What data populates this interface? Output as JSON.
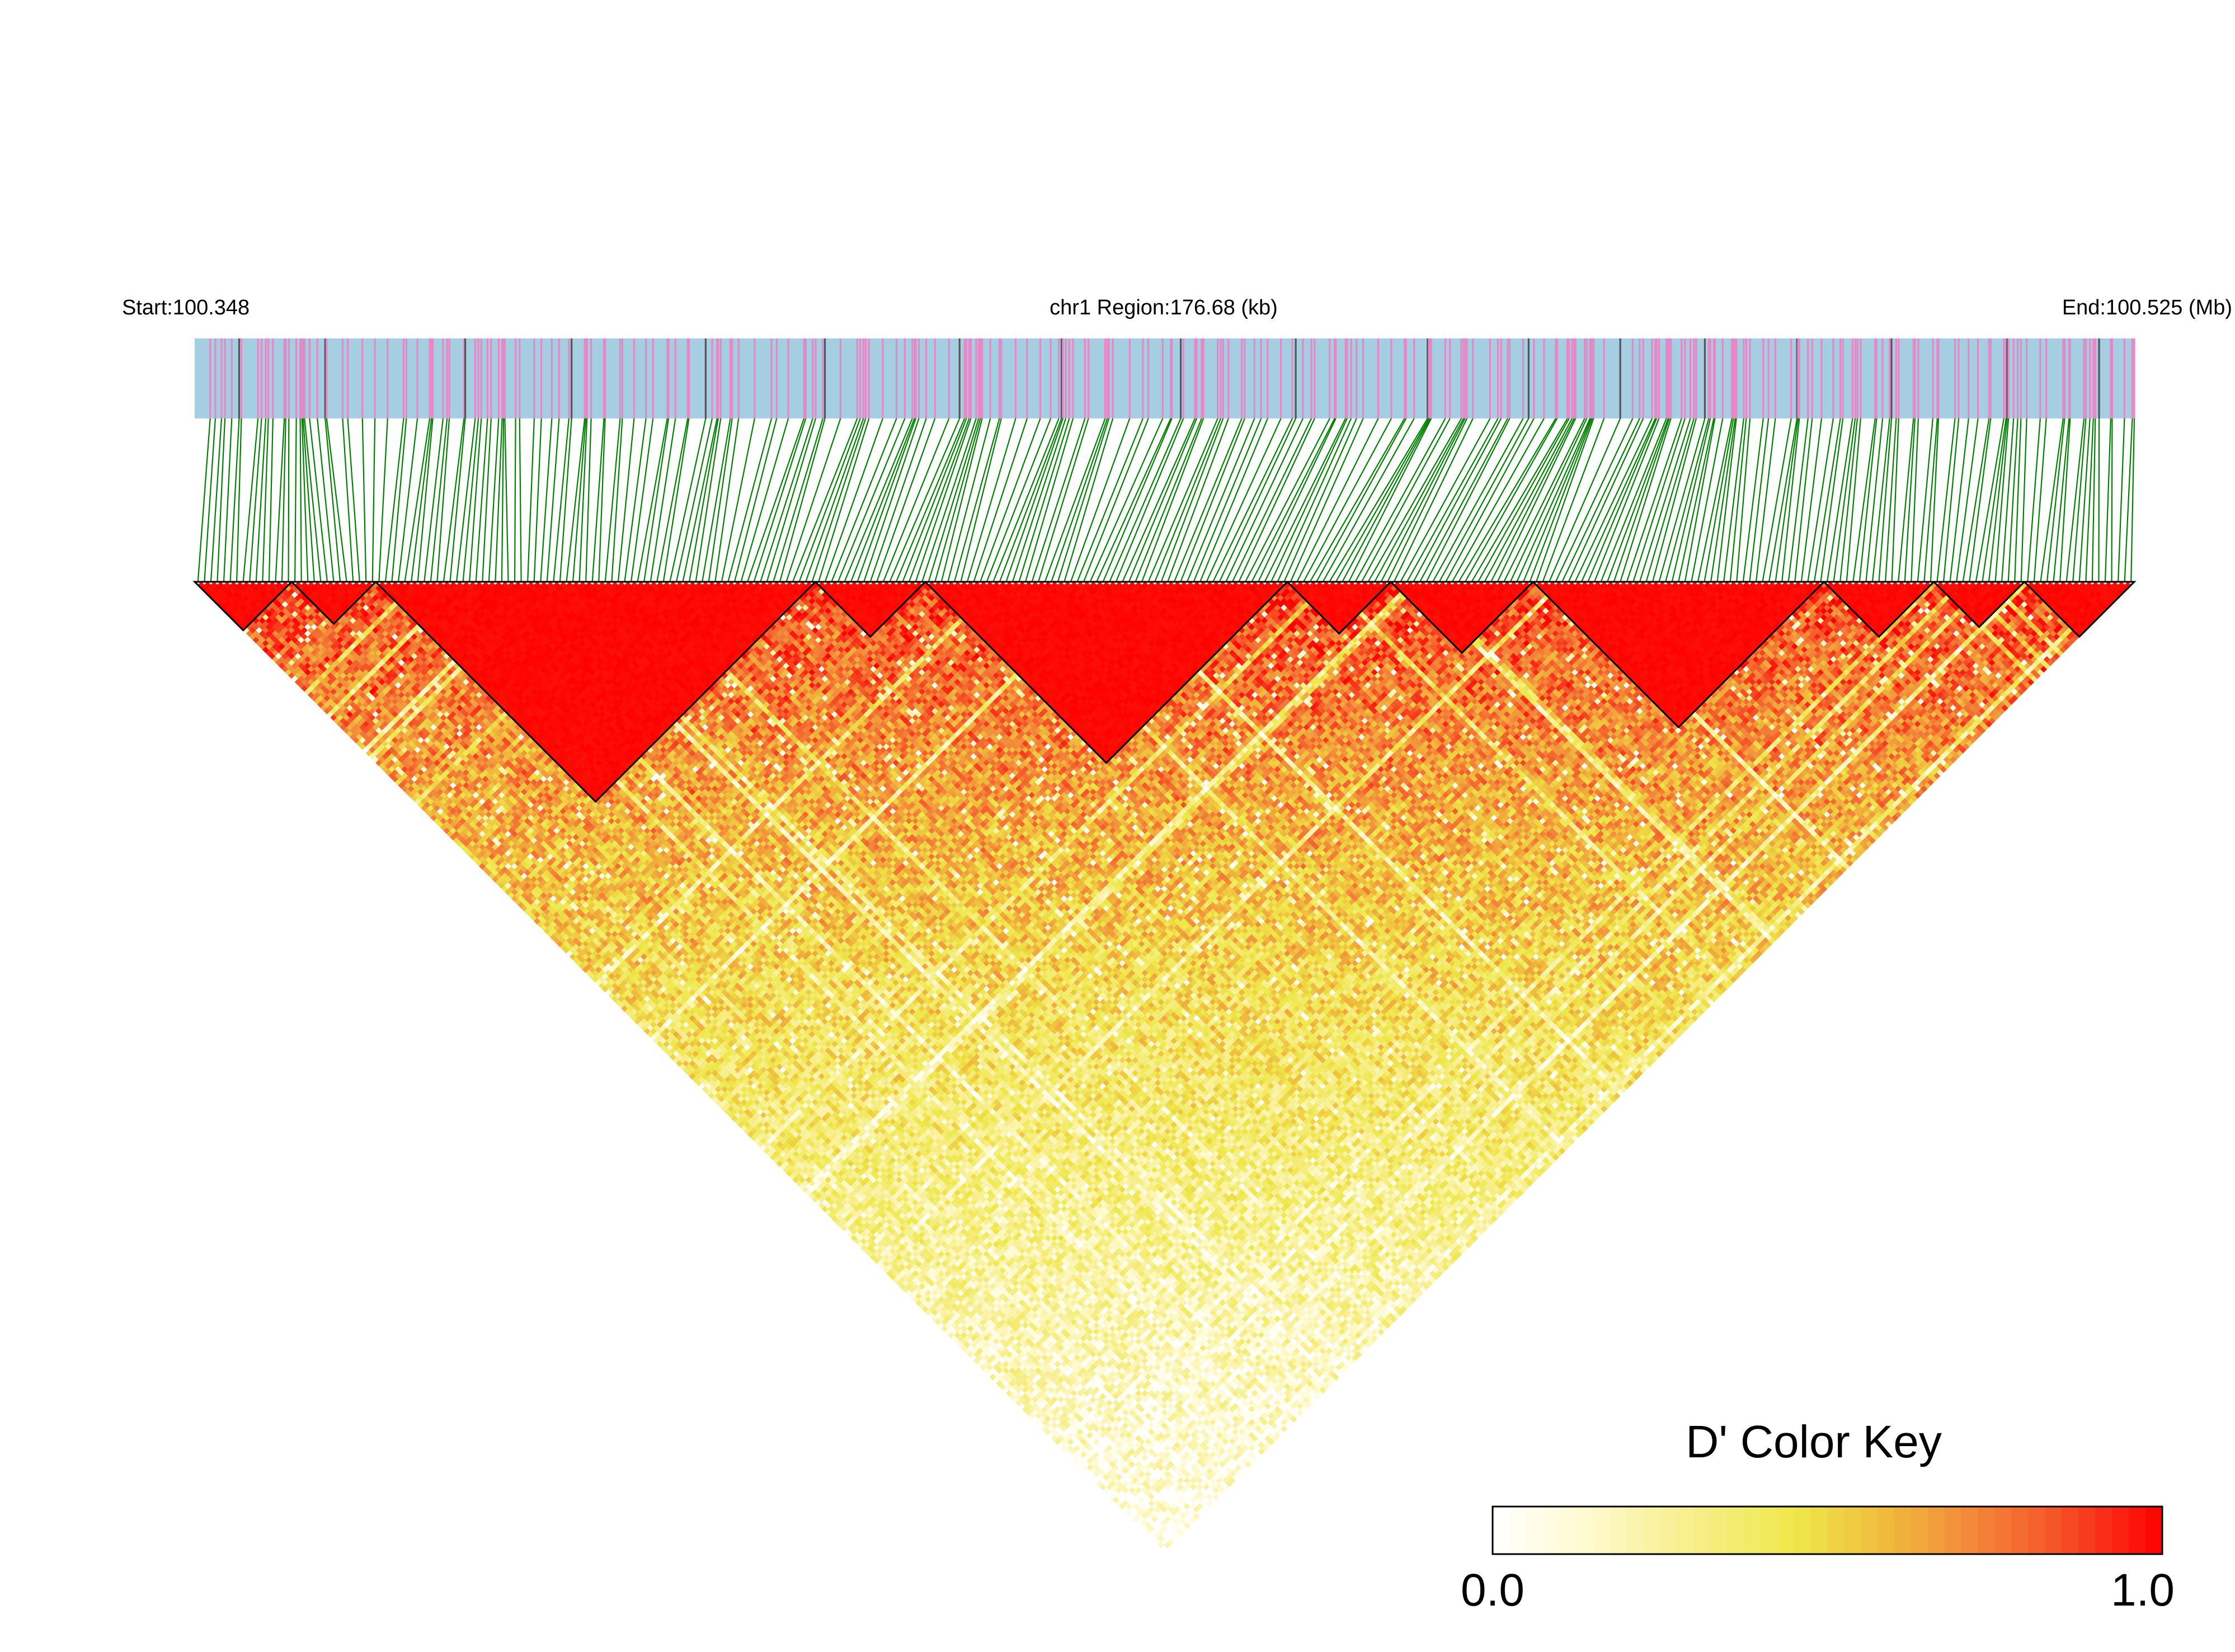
{
  "header": {
    "start_label": "Start:100.348",
    "region_label": "chr1 Region:176.68 (kb)",
    "end_label": "End:100.525 (Mb)"
  },
  "legend": {
    "title": "D' Color Key",
    "min_label": "0.0",
    "max_label": "1.0",
    "colors": [
      "#ffffff",
      "#fffbd6",
      "#f7ee8a",
      "#eee84a",
      "#f0b63c",
      "#f3863a",
      "#f55a2a",
      "#f82a16",
      "#ff0000"
    ]
  },
  "colors": {
    "track_background": "#a6cee3",
    "track_tick_pink": "#e688c8",
    "track_tick_dark": "#555555",
    "connector_line": "#008000",
    "block_outline": "#000000",
    "high_ld": "#ff0000"
  },
  "chart_data": {
    "type": "heatmap",
    "subtype": "linkage-disequilibrium-triangle",
    "chromosome": "chr1",
    "region_start_mb": 100.348,
    "region_end_mb": 100.525,
    "region_length_kb": 176.68,
    "value_name": "D'",
    "value_range": [
      0,
      1
    ],
    "snp_count": 300,
    "ld_blocks_snp_index_ranges": [
      [
        0,
        14
      ],
      [
        15,
        27
      ],
      [
        28,
        95
      ],
      [
        96,
        112
      ],
      [
        113,
        168
      ],
      [
        169,
        184
      ],
      [
        185,
        206
      ],
      [
        207,
        251
      ],
      [
        252,
        268
      ],
      [
        269,
        282
      ],
      [
        283,
        299
      ]
    ]
  }
}
